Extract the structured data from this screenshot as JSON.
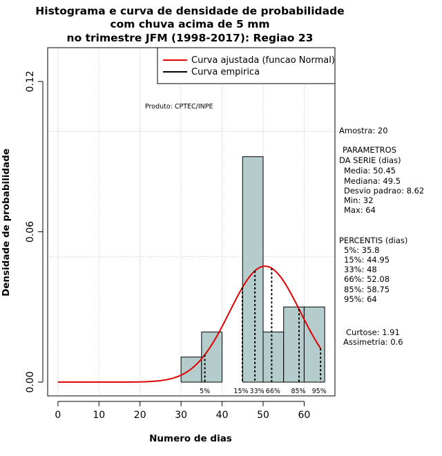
{
  "chart_data": {
    "type": "bar",
    "title_lines": [
      "Histograma e curva de densidade de probabilidade",
      "com chuva acima de 5 mm",
      "no trimestre JFM (1998-2017): Regiao 23"
    ],
    "xlabel": "Numero de dias",
    "ylabel": "Densidade de probabilidade",
    "xlim": [
      -2.5,
      67.5
    ],
    "ylim": [
      -0.0055,
      0.1335
    ],
    "x_ticks": [
      0,
      10,
      20,
      30,
      40,
      50,
      60
    ],
    "y_ticks": [
      0.0,
      0.06,
      0.12
    ],
    "y_tick_labels": [
      "0.00",
      "0.06",
      "0.12"
    ],
    "grid_x": [
      0,
      10,
      20,
      30,
      40,
      50,
      60
    ],
    "grid_y": [
      0.05,
      0.1
    ],
    "histogram": {
      "color": "#b4cccc",
      "bins": [
        {
          "x0": 30,
          "x1": 35,
          "density": 0.01
        },
        {
          "x0": 35,
          "x1": 40,
          "density": 0.02
        },
        {
          "x0": 40,
          "x1": 45,
          "density": 0.0
        },
        {
          "x0": 45,
          "x1": 50,
          "density": 0.09
        },
        {
          "x0": 50,
          "x1": 55,
          "density": 0.02
        },
        {
          "x0": 55,
          "x1": 60,
          "density": 0.03
        },
        {
          "x0": 60,
          "x1": 65,
          "density": 0.03
        }
      ]
    },
    "normal_curve": {
      "mean": 50.45,
      "sd": 8.62,
      "x_from": 0,
      "x_to": 64,
      "color": "#e00000"
    },
    "percentiles": [
      {
        "label": "5%",
        "value": 35.8
      },
      {
        "label": "15%",
        "value": 44.95
      },
      {
        "label": "33%",
        "value": 48
      },
      {
        "label": "66%",
        "value": 52.08
      },
      {
        "label": "85%",
        "value": 58.75
      },
      {
        "label": "95%",
        "value": 64
      }
    ],
    "legend": [
      {
        "label": "Curva ajustada (funcao Normal)",
        "color": "#e00000"
      },
      {
        "label": "Curva empirica",
        "color": "#000000"
      }
    ],
    "legend_position": "top-right",
    "annotation": "Produto: CPTEC/INPE",
    "side_text": {
      "amostra": "Amostra: 20",
      "params_title_1": "PARAMETROS",
      "params_title_2": "DA SERIE (dias)",
      "media": "Media: 50.45",
      "mediana": "Mediana: 49.5",
      "desvio": "Desvio padrao: 8.62",
      "min": "Min: 32",
      "max": "Max: 64",
      "percentis_title": "PERCENTIS (dias)",
      "p5": "5%: 35.8",
      "p15": "15%: 44.95",
      "p33": "33%: 48",
      "p66": "66%: 52.08",
      "p85": "85%: 58.75",
      "p95": "95%: 64",
      "curtose": "Curtose: 1.91",
      "assimetria": "Assimetria: 0.6"
    }
  }
}
